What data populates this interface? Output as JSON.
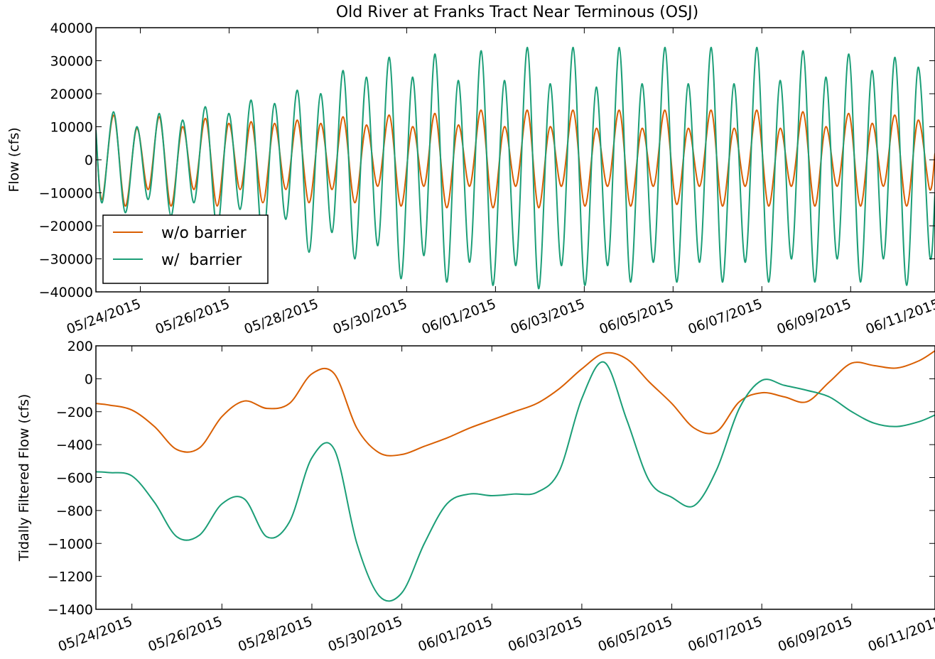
{
  "chart_data": [
    {
      "type": "line",
      "title": "Old River at Franks Tract Near Terminous (OSJ)",
      "ylabel": "Flow (cfs)",
      "legend": "lower left",
      "xlim": [
        0,
        18.9
      ],
      "xticks": [
        {
          "value": 1,
          "label": "05/24/2015"
        },
        {
          "value": 3,
          "label": "05/26/2015"
        },
        {
          "value": 5,
          "label": "05/28/2015"
        },
        {
          "value": 7,
          "label": "05/30/2015"
        },
        {
          "value": 9,
          "label": "06/01/2015"
        },
        {
          "value": 11,
          "label": "06/03/2015"
        },
        {
          "value": 13,
          "label": "06/05/2015"
        },
        {
          "value": 15,
          "label": "06/07/2015"
        },
        {
          "value": 17,
          "label": "06/09/2015"
        },
        {
          "value": 19,
          "label": "06/11/2015"
        }
      ],
      "ylim": [
        -40000,
        40000
      ],
      "yticks": [
        {
          "value": -40000,
          "label": "−40000"
        },
        {
          "value": -30000,
          "label": "−30000"
        },
        {
          "value": -20000,
          "label": "−20000"
        },
        {
          "value": -10000,
          "label": "−10000"
        },
        0,
        10000,
        20000,
        30000,
        40000
      ],
      "x": [
        0,
        0.14,
        0.4,
        0.66,
        0.92,
        1.18,
        1.43,
        1.69,
        1.95,
        2.21,
        2.47,
        2.73,
        2.99,
        3.25,
        3.5,
        3.76,
        4.02,
        4.28,
        4.54,
        4.8,
        5.06,
        5.32,
        5.57,
        5.83,
        6.09,
        6.35,
        6.61,
        6.87,
        7.13,
        7.39,
        7.64,
        7.9,
        8.16,
        8.42,
        8.68,
        8.94,
        9.2,
        9.46,
        9.72,
        9.97,
        10.23,
        10.49,
        10.75,
        11.01,
        11.27,
        11.53,
        11.79,
        12.04,
        12.3,
        12.56,
        12.82,
        13.08,
        13.34,
        13.6,
        13.86,
        14.11,
        14.37,
        14.63,
        14.89,
        15.15,
        15.41,
        15.67,
        15.93,
        16.19,
        16.44,
        16.7,
        16.96,
        17.22,
        17.48,
        17.74,
        18.0,
        18.26,
        18.52,
        18.78,
        18.9
      ],
      "series": [
        {
          "name": "w/o barrier",
          "color": "#d95f02",
          "values": [
            8000,
            -12000,
            13500,
            -14000,
            9500,
            -9000,
            13000,
            -14000,
            10000,
            -9000,
            12500,
            -14000,
            11000,
            -9000,
            11500,
            -13000,
            11000,
            -9000,
            12000,
            -13000,
            11000,
            -9000,
            13000,
            -13000,
            10500,
            -8000,
            13500,
            -14000,
            10000,
            -8000,
            14000,
            -14500,
            10500,
            -8000,
            15000,
            -14500,
            10000,
            -8000,
            15000,
            -14500,
            10000,
            -8000,
            15000,
            -14000,
            9500,
            -8000,
            15000,
            -14000,
            9500,
            -8000,
            15000,
            -13500,
            9500,
            -8000,
            15000,
            -14000,
            9500,
            -8000,
            15000,
            -14000,
            9500,
            -8000,
            14500,
            -14000,
            10000,
            -8000,
            14000,
            -14000,
            11000,
            -8000,
            13500,
            -14000,
            12000,
            -9000,
            2000
          ]
        },
        {
          "name": "w/  barrier",
          "color": "#1b9e77",
          "values": [
            9000,
            -13000,
            14500,
            -16000,
            10000,
            -12000,
            14000,
            -17000,
            12000,
            -13000,
            16000,
            -21000,
            14000,
            -15000,
            18000,
            -25000,
            17000,
            -18000,
            21000,
            -28000,
            20000,
            -22000,
            27000,
            -30000,
            25000,
            -26000,
            31000,
            -36000,
            25000,
            -29000,
            32000,
            -37000,
            24000,
            -31000,
            33000,
            -38000,
            24000,
            -32000,
            34000,
            -39000,
            23000,
            -32000,
            34000,
            -38000,
            22000,
            -32000,
            34000,
            -37000,
            23000,
            -31000,
            34000,
            -37000,
            23000,
            -31000,
            34000,
            -37000,
            23000,
            -31000,
            34000,
            -37000,
            24000,
            -30000,
            33000,
            -37000,
            25000,
            -30000,
            32000,
            -37000,
            27000,
            -30000,
            31000,
            -38000,
            28000,
            -29000,
            -10000
          ]
        }
      ]
    },
    {
      "type": "line",
      "ylabel": "Tidally Filtered Flow (cfs)",
      "xlim": [
        0.2,
        18.85
      ],
      "xticks": [
        {
          "value": 1,
          "label": "05/24/2015"
        },
        {
          "value": 3,
          "label": "05/26/2015"
        },
        {
          "value": 5,
          "label": "05/28/2015"
        },
        {
          "value": 7,
          "label": "05/30/2015"
        },
        {
          "value": 9,
          "label": "06/01/2015"
        },
        {
          "value": 11,
          "label": "06/03/2015"
        },
        {
          "value": 13,
          "label": "06/05/2015"
        },
        {
          "value": 15,
          "label": "06/07/2015"
        },
        {
          "value": 17,
          "label": "06/09/2015"
        },
        {
          "value": 19,
          "label": "06/11/2015"
        }
      ],
      "ylim": [
        -1400,
        200
      ],
      "yticks": [
        {
          "value": -1400,
          "label": "−1400"
        },
        {
          "value": -1200,
          "label": "−1200"
        },
        {
          "value": -1000,
          "label": "−1000"
        },
        {
          "value": -800,
          "label": "−800"
        },
        {
          "value": -600,
          "label": "−600"
        },
        {
          "value": -400,
          "label": "−400"
        },
        {
          "value": -200,
          "label": "−200"
        },
        0,
        200
      ],
      "x": [
        0.2,
        0.5,
        1.0,
        1.5,
        2.0,
        2.5,
        3.0,
        3.5,
        4.0,
        4.5,
        5.0,
        5.5,
        6.0,
        6.5,
        7.0,
        7.5,
        8.0,
        8.5,
        9.0,
        9.5,
        10.0,
        10.5,
        11.0,
        11.5,
        12.0,
        12.5,
        13.0,
        13.5,
        14.0,
        14.5,
        15.0,
        15.5,
        16.0,
        16.5,
        17.0,
        17.5,
        18.0,
        18.5,
        18.85
      ],
      "series": [
        {
          "color": "#d95f02",
          "values": [
            -150,
            -160,
            -190,
            -290,
            -430,
            -420,
            -230,
            -135,
            -180,
            -150,
            30,
            30,
            -300,
            -450,
            -460,
            -410,
            -360,
            -300,
            -250,
            -200,
            -150,
            -60,
            60,
            155,
            120,
            -20,
            -150,
            -300,
            -320,
            -140,
            -85,
            -110,
            -140,
            -20,
            95,
            80,
            65,
            110,
            170
          ]
        },
        {
          "color": "#1b9e77",
          "values": [
            -565,
            -570,
            -590,
            -750,
            -960,
            -950,
            -760,
            -730,
            -960,
            -870,
            -480,
            -430,
            -1000,
            -1320,
            -1300,
            -1000,
            -760,
            -700,
            -710,
            -700,
            -690,
            -560,
            -120,
            100,
            -250,
            -620,
            -720,
            -770,
            -550,
            -180,
            -10,
            -40,
            -70,
            -110,
            -200,
            -270,
            -290,
            -260,
            -220
          ]
        }
      ]
    }
  ]
}
